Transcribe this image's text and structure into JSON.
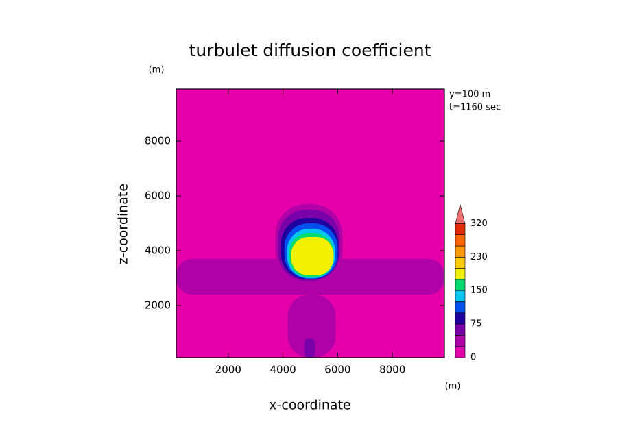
{
  "chart_data": {
    "type": "contour",
    "title": "turbulet diffusion coefficient",
    "y_unit": "(m)",
    "x_unit": "(m)",
    "xlabel": "x-coordinate",
    "ylabel": "z-coordinate",
    "annotations": [
      "y=100 m",
      "t=1160 sec"
    ],
    "xlim": [
      100,
      9900
    ],
    "ylim": [
      100,
      9900
    ],
    "xticks": [
      2000,
      4000,
      6000,
      8000
    ],
    "yticks": [
      2000,
      4000,
      6000,
      8000
    ],
    "colorbar": {
      "levels": [
        0,
        25,
        50,
        75,
        100,
        125,
        150,
        175,
        200,
        230,
        260,
        290,
        320
      ],
      "colors": [
        "#e600aa",
        "#b000a8",
        "#7a00aa",
        "#1e00a0",
        "#0050f0",
        "#00c8f0",
        "#00dc6e",
        "#f0f000",
        "#ffcc00",
        "#ff9900",
        "#ff6400",
        "#e62800"
      ],
      "over_color": "#f07070",
      "ticks": [
        0,
        75,
        150,
        230,
        320
      ]
    },
    "regions": [
      {
        "level": 25,
        "x": [
          100,
          9900
        ],
        "z": [
          2400,
          3700
        ]
      },
      {
        "level": 25,
        "x": [
          4175,
          5925
        ],
        "z": [
          100,
          2400
        ]
      },
      {
        "level": 50,
        "x": [
          4775,
          5175
        ],
        "z": [
          100,
          800
        ]
      },
      {
        "level": 25,
        "x": [
          3725,
          6175
        ],
        "z": [
          2850,
          5700
        ]
      },
      {
        "level": 50,
        "x": [
          3825,
          6075
        ],
        "z": [
          2900,
          5500
        ]
      },
      {
        "level": 75,
        "x": [
          3925,
          6025
        ],
        "z": [
          2950,
          5200
        ]
      },
      {
        "level": 100,
        "x": [
          4050,
          6000
        ],
        "z": [
          2975,
          5000
        ]
      },
      {
        "level": 125,
        "x": [
          4150,
          5900
        ],
        "z": [
          3000,
          4800
        ]
      },
      {
        "level": 150,
        "x": [
          4225,
          5850
        ],
        "z": [
          3025,
          4650
        ]
      },
      {
        "level": 175,
        "x": [
          4300,
          5850
        ],
        "z": [
          3100,
          4500
        ]
      }
    ]
  }
}
